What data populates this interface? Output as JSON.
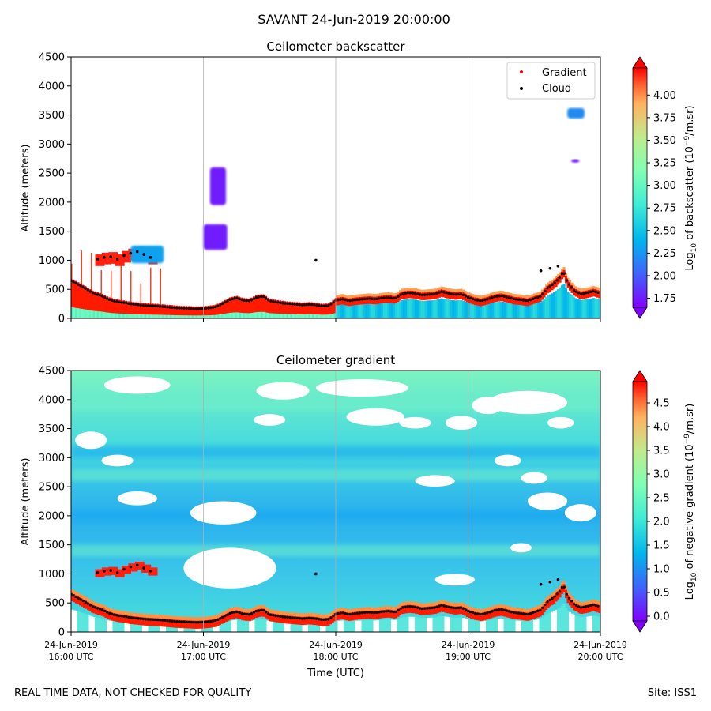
{
  "figure": {
    "title": "SAVANT 24-Jun-2019 20:00:00",
    "footer_left": "REAL TIME DATA, NOT CHECKED FOR QUALITY",
    "footer_right": "Site: ISS1"
  },
  "chart_data": [
    {
      "type": "heatmap",
      "title": "Ceilometer backscatter",
      "xlabel": "",
      "ylabel": "Altitude (meters)",
      "xlim": [
        16,
        20
      ],
      "ylim": [
        0,
        4500
      ],
      "yticks": [
        0,
        500,
        1000,
        1500,
        2000,
        2500,
        3000,
        3500,
        4000,
        4500
      ],
      "x_ticks_hours": [
        16,
        17,
        18,
        19,
        20
      ],
      "grid": "vertical",
      "legend": {
        "position": "top-right",
        "entries": [
          {
            "label": "Gradient",
            "color": "#ff0000"
          },
          {
            "label": "Cloud",
            "color": "#000000"
          }
        ]
      },
      "colorbar": {
        "label_prefix": "Log",
        "label_sub": "10",
        "label_text": " of backscatter (10",
        "label_sup": "−9",
        "label_suffix": "/m.sr)",
        "range": [
          1.65,
          4.3
        ],
        "ticks": [
          "1.75",
          "2.00",
          "2.25",
          "2.50",
          "2.75",
          "3.00",
          "3.25",
          "3.50",
          "3.75",
          "4.00"
        ],
        "colormap": "rainbow"
      },
      "cloud_layers": [
        {
          "x0": 17.05,
          "x1": 17.17,
          "y0": 1950,
          "y1": 2600,
          "value": 1.75
        },
        {
          "x0": 17.0,
          "x1": 17.18,
          "y0": 1180,
          "y1": 1620,
          "value": 1.75
        },
        {
          "x0": 19.75,
          "x1": 19.88,
          "y0": 3440,
          "y1": 3620,
          "value": 2.2
        },
        {
          "x0": 19.78,
          "x1": 19.84,
          "y0": 2680,
          "y1": 2740,
          "value": 1.75
        },
        {
          "x0": 16.45,
          "x1": 16.7,
          "y0": 950,
          "y1": 1250,
          "value": 2.3
        }
      ]
    },
    {
      "type": "heatmap",
      "title": "Ceilometer gradient",
      "xlabel": "Time (UTC)",
      "ylabel": "Altitude (meters)",
      "xlim": [
        16,
        20
      ],
      "ylim": [
        0,
        4500
      ],
      "yticks": [
        0,
        500,
        1000,
        1500,
        2000,
        2500,
        3000,
        3500,
        4000,
        4500
      ],
      "x_ticks": [
        {
          "hour": 16,
          "line1": "24-Jun-2019",
          "line2": "16:00 UTC"
        },
        {
          "hour": 17,
          "line1": "24-Jun-2019",
          "line2": "17:00 UTC"
        },
        {
          "hour": 18,
          "line1": "24-Jun-2019",
          "line2": "18:00 UTC"
        },
        {
          "hour": 19,
          "line1": "24-Jun-2019",
          "line2": "19:00 UTC"
        },
        {
          "hour": 20,
          "line1": "24-Jun-2019",
          "line2": "20:00 UTC"
        }
      ],
      "grid": "vertical",
      "colorbar": {
        "label_prefix": "Log",
        "label_sub": "10",
        "label_text": " of negative gradient (10",
        "label_sup": "−9",
        "label_suffix": "/m.sr)",
        "range": [
          -0.1,
          4.95
        ],
        "ticks": [
          "0.0",
          "0.5",
          "1.0",
          "1.5",
          "2.0",
          "2.5",
          "3.0",
          "3.5",
          "4.0",
          "4.5"
        ],
        "colormap": "rainbow"
      },
      "white_gaps": [
        {
          "x": 16.15,
          "y": 3300,
          "rx": 0.12,
          "ry": 150
        },
        {
          "x": 16.5,
          "y": 4250,
          "rx": 0.25,
          "ry": 150
        },
        {
          "x": 16.35,
          "y": 2950,
          "rx": 0.12,
          "ry": 100
        },
        {
          "x": 16.5,
          "y": 2300,
          "rx": 0.15,
          "ry": 120
        },
        {
          "x": 17.15,
          "y": 2050,
          "rx": 0.25,
          "ry": 200
        },
        {
          "x": 17.2,
          "y": 1100,
          "rx": 0.35,
          "ry": 350
        },
        {
          "x": 17.5,
          "y": 3650,
          "rx": 0.12,
          "ry": 100
        },
        {
          "x": 17.6,
          "y": 4150,
          "rx": 0.2,
          "ry": 150
        },
        {
          "x": 18.3,
          "y": 3700,
          "rx": 0.22,
          "ry": 150
        },
        {
          "x": 18.6,
          "y": 3600,
          "rx": 0.12,
          "ry": 100
        },
        {
          "x": 18.2,
          "y": 4200,
          "rx": 0.35,
          "ry": 150
        },
        {
          "x": 18.75,
          "y": 2600,
          "rx": 0.15,
          "ry": 100
        },
        {
          "x": 18.95,
          "y": 3600,
          "rx": 0.12,
          "ry": 120
        },
        {
          "x": 19.15,
          "y": 3900,
          "rx": 0.12,
          "ry": 150
        },
        {
          "x": 19.45,
          "y": 3950,
          "rx": 0.3,
          "ry": 200
        },
        {
          "x": 19.7,
          "y": 3600,
          "rx": 0.1,
          "ry": 100
        },
        {
          "x": 19.3,
          "y": 2950,
          "rx": 0.1,
          "ry": 100
        },
        {
          "x": 19.6,
          "y": 2250,
          "rx": 0.15,
          "ry": 150
        },
        {
          "x": 19.4,
          "y": 1450,
          "rx": 0.08,
          "ry": 80
        },
        {
          "x": 18.9,
          "y": 900,
          "rx": 0.15,
          "ry": 100
        },
        {
          "x": 19.85,
          "y": 2050,
          "rx": 0.12,
          "ry": 150
        },
        {
          "x": 19.5,
          "y": 2650,
          "rx": 0.1,
          "ry": 100
        }
      ]
    }
  ],
  "series": {
    "cloud_base": [
      [
        16.0,
        650
      ],
      [
        16.04,
        600
      ],
      [
        16.08,
        550
      ],
      [
        16.12,
        500
      ],
      [
        16.16,
        440
      ],
      [
        16.2,
        410
      ],
      [
        16.24,
        380
      ],
      [
        16.28,
        330
      ],
      [
        16.32,
        300
      ],
      [
        16.36,
        280
      ],
      [
        16.4,
        270
      ],
      [
        16.44,
        250
      ],
      [
        16.48,
        240
      ],
      [
        16.52,
        230
      ],
      [
        16.56,
        220
      ],
      [
        16.6,
        215
      ],
      [
        16.65,
        210
      ],
      [
        16.7,
        200
      ],
      [
        16.75,
        190
      ],
      [
        16.8,
        180
      ],
      [
        16.85,
        175
      ],
      [
        16.9,
        170
      ],
      [
        16.95,
        165
      ],
      [
        17.0,
        170
      ],
      [
        17.05,
        180
      ],
      [
        17.1,
        200
      ],
      [
        17.15,
        260
      ],
      [
        17.2,
        320
      ],
      [
        17.25,
        350
      ],
      [
        17.3,
        310
      ],
      [
        17.35,
        300
      ],
      [
        17.4,
        360
      ],
      [
        17.45,
        380
      ],
      [
        17.5,
        300
      ],
      [
        17.55,
        280
      ],
      [
        17.6,
        260
      ],
      [
        17.65,
        250
      ],
      [
        17.7,
        240
      ],
      [
        17.75,
        230
      ],
      [
        17.8,
        240
      ],
      [
        17.85,
        230
      ],
      [
        17.9,
        210
      ],
      [
        17.95,
        220
      ],
      [
        18.0,
        310
      ],
      [
        18.05,
        330
      ],
      [
        18.1,
        300
      ],
      [
        18.15,
        320
      ],
      [
        18.2,
        330
      ],
      [
        18.25,
        340
      ],
      [
        18.3,
        330
      ],
      [
        18.35,
        350
      ],
      [
        18.4,
        360
      ],
      [
        18.45,
        340
      ],
      [
        18.5,
        420
      ],
      [
        18.55,
        440
      ],
      [
        18.6,
        430
      ],
      [
        18.65,
        400
      ],
      [
        18.7,
        410
      ],
      [
        18.75,
        420
      ],
      [
        18.8,
        460
      ],
      [
        18.85,
        430
      ],
      [
        18.9,
        410
      ],
      [
        18.95,
        420
      ],
      [
        19.0,
        360
      ],
      [
        19.05,
        320
      ],
      [
        19.1,
        300
      ],
      [
        19.15,
        330
      ],
      [
        19.2,
        370
      ],
      [
        19.25,
        390
      ],
      [
        19.3,
        360
      ],
      [
        19.35,
        330
      ],
      [
        19.4,
        320
      ],
      [
        19.45,
        300
      ],
      [
        19.5,
        340
      ],
      [
        19.55,
        380
      ],
      [
        19.6,
        520
      ],
      [
        19.65,
        600
      ],
      [
        19.7,
        720
      ],
      [
        19.72,
        820
      ],
      [
        19.75,
        620
      ],
      [
        19.8,
        480
      ],
      [
        19.85,
        420
      ],
      [
        19.9,
        440
      ],
      [
        19.95,
        470
      ],
      [
        20.0,
        430
      ]
    ],
    "upper_layer": [
      [
        16.2,
        1020
      ],
      [
        16.25,
        1050
      ],
      [
        16.3,
        1060
      ],
      [
        16.35,
        1020
      ],
      [
        16.4,
        1080
      ],
      [
        16.45,
        1120
      ],
      [
        16.5,
        1150
      ],
      [
        16.55,
        1100
      ],
      [
        16.6,
        1050
      ],
      [
        17.85,
        1000
      ],
      [
        19.55,
        820
      ],
      [
        19.62,
        860
      ],
      [
        19.68,
        900
      ]
    ]
  }
}
